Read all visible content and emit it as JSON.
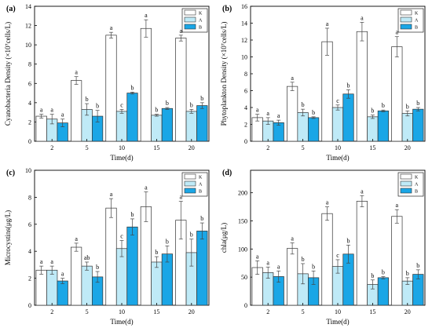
{
  "chart_data": [
    {
      "type": "bar",
      "panel_label": "(a)",
      "categories": [
        "2",
        "5",
        "10",
        "15",
        "20"
      ],
      "xlabel": "Time(d)",
      "ylabel": "Cyanobacteria Density (×10⁷cells/L)",
      "ylim": [
        0,
        14
      ],
      "yticks": [
        0,
        2,
        4,
        6,
        8,
        10,
        12,
        14
      ],
      "legend_position": "top-right",
      "series": [
        {
          "name": "K",
          "color": "#ffffff",
          "values": [
            2.6,
            6.3,
            11.0,
            11.7,
            10.7
          ],
          "errors": [
            0.2,
            0.4,
            0.3,
            0.9,
            0.3
          ],
          "letters": [
            "a",
            "a",
            "a",
            "a",
            "a"
          ]
        },
        {
          "name": "A",
          "color": "#bfeaf7",
          "values": [
            2.3,
            3.3,
            3.1,
            2.7,
            3.1
          ],
          "errors": [
            0.5,
            0.6,
            0.2,
            0.1,
            0.2
          ],
          "letters": [
            "a",
            "b",
            "c",
            "b",
            "b"
          ]
        },
        {
          "name": "B",
          "color": "#1aa6e6",
          "values": [
            1.9,
            2.6,
            5.0,
            3.4,
            3.7
          ],
          "errors": [
            0.4,
            0.6,
            0.1,
            0.1,
            0.3
          ],
          "letters": [
            "a",
            "b",
            "b",
            "b",
            "b"
          ]
        }
      ]
    },
    {
      "type": "bar",
      "panel_label": "(b)",
      "categories": [
        "2",
        "5",
        "10",
        "15",
        "20"
      ],
      "xlabel": "Time(d)",
      "ylabel": "Phytoplankton Density (×10⁷cells/L)",
      "ylim": [
        0,
        16
      ],
      "yticks": [
        0,
        2,
        4,
        6,
        8,
        10,
        12,
        14,
        16
      ],
      "legend_position": "top-right",
      "series": [
        {
          "name": "K",
          "color": "#ffffff",
          "values": [
            2.8,
            6.5,
            11.8,
            13.0,
            11.2
          ],
          "errors": [
            0.4,
            0.5,
            1.6,
            1.1,
            1.2
          ],
          "letters": [
            "a",
            "a",
            "a",
            "a",
            "a"
          ]
        },
        {
          "name": "A",
          "color": "#bfeaf7",
          "values": [
            2.4,
            3.4,
            4.0,
            2.9,
            3.3
          ],
          "errors": [
            0.4,
            0.4,
            0.3,
            0.2,
            0.3
          ],
          "letters": [
            "a",
            "b",
            "c",
            "b",
            "b"
          ]
        },
        {
          "name": "B",
          "color": "#1aa6e6",
          "values": [
            2.2,
            2.8,
            5.6,
            3.6,
            3.8
          ],
          "errors": [
            0.3,
            0.1,
            0.5,
            0.1,
            0.2
          ],
          "letters": [
            "a",
            "b",
            "b",
            "b",
            "b"
          ]
        }
      ]
    },
    {
      "type": "bar",
      "panel_label": "(c)",
      "categories": [
        "2",
        "5",
        "10",
        "15",
        "20"
      ],
      "xlabel": "Time(d)",
      "ylabel": "Microcystins(μg/L)",
      "ylim": [
        0,
        10
      ],
      "yticks": [
        0,
        2,
        4,
        6,
        8,
        10
      ],
      "legend_position": "top-right",
      "series": [
        {
          "name": "K",
          "color": "#ffffff",
          "values": [
            2.6,
            4.3,
            7.2,
            7.3,
            6.3
          ],
          "errors": [
            0.3,
            0.3,
            0.7,
            1.1,
            1.4
          ],
          "letters": [
            "a",
            "a",
            "a",
            "a",
            "a"
          ]
        },
        {
          "name": "A",
          "color": "#bfeaf7",
          "values": [
            2.6,
            2.9,
            4.2,
            3.2,
            3.9
          ],
          "errors": [
            0.3,
            0.3,
            0.6,
            0.4,
            1.0
          ],
          "letters": [
            "a",
            "ab",
            "c",
            "b",
            "b"
          ]
        },
        {
          "name": "B",
          "color": "#1aa6e6",
          "values": [
            1.8,
            2.1,
            5.8,
            3.8,
            5.5
          ],
          "errors": [
            0.2,
            0.4,
            0.6,
            0.6,
            0.6
          ],
          "letters": [
            "a",
            "b",
            "b",
            "b",
            "b"
          ]
        }
      ]
    },
    {
      "type": "bar",
      "panel_label": "(d)",
      "categories": [
        "2",
        "5",
        "10",
        "15",
        "20"
      ],
      "xlabel": "Time(d)",
      "ylabel": "chla(μg/L)",
      "ylim": [
        0,
        240
      ],
      "yticks": [
        0,
        50,
        100,
        150,
        200
      ],
      "legend_position": "top-right",
      "series": [
        {
          "name": "K",
          "color": "#ffffff",
          "values": [
            67,
            101,
            163,
            185,
            158
          ],
          "errors": [
            12,
            10,
            12,
            10,
            12
          ],
          "letters": [
            "a",
            "a",
            "a",
            "a",
            "a"
          ]
        },
        {
          "name": "A",
          "color": "#bfeaf7",
          "values": [
            58,
            56,
            69,
            37,
            43
          ],
          "errors": [
            10,
            18,
            12,
            8,
            6
          ],
          "letters": [
            "a",
            "b",
            "c",
            "b",
            "b"
          ]
        },
        {
          "name": "B",
          "color": "#1aa6e6",
          "values": [
            51,
            49,
            91,
            49,
            55
          ],
          "errors": [
            10,
            12,
            16,
            2,
            8
          ],
          "letters": [
            "a",
            "b",
            "b",
            "b",
            "b"
          ]
        }
      ]
    }
  ]
}
